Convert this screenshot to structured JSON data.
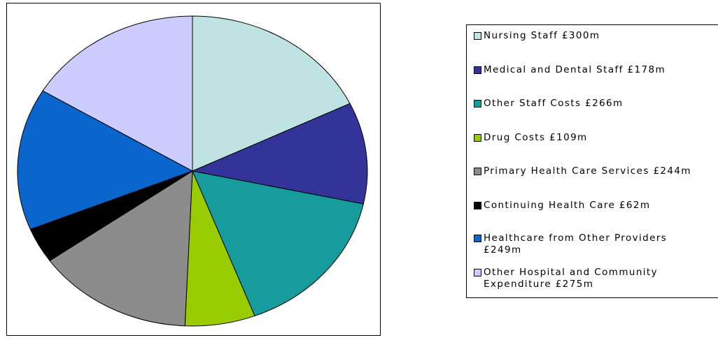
{
  "chart_data": {
    "type": "pie",
    "title": "",
    "slices": [
      {
        "label": "Nursing Staff £300m",
        "value": 300,
        "color": "#bfe3e3"
      },
      {
        "label": "Medical and Dental Staff £178m",
        "value": 178,
        "color": "#333399"
      },
      {
        "label": "Other Staff Costs £266m",
        "value": 266,
        "color": "#169c9c"
      },
      {
        "label": "Drug Costs £109m",
        "value": 109,
        "color": "#99cc00"
      },
      {
        "label": "Primary Health Care Services £244m",
        "value": 244,
        "color": "#8c8c8c"
      },
      {
        "label": "Continuing Health Care £62m",
        "value": 62,
        "color": "#000000"
      },
      {
        "label": "Healthcare from Other Providers\n£249m",
        "value": 249,
        "color": "#0a66cc"
      },
      {
        "label": "Other Hospital and Community\nExpenditure £275m",
        "value": 275,
        "color": "#ccccff"
      }
    ],
    "start": "12 o'clock",
    "direction": "clockwise",
    "legend_position": "right"
  }
}
